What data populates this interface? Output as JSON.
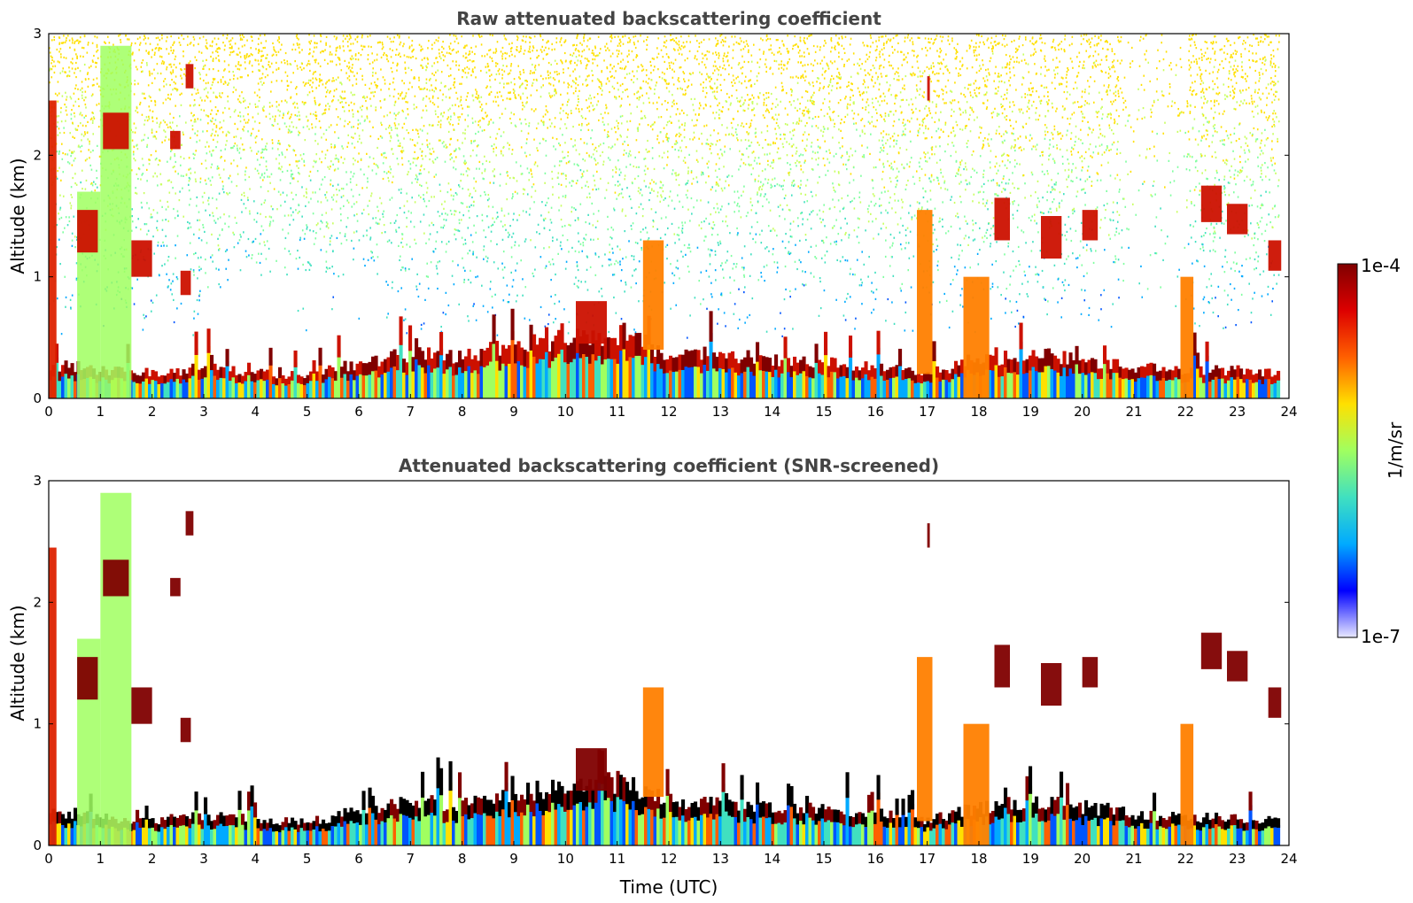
{
  "chart_data": [
    {
      "type": "heatmap",
      "title": "Raw attenuated backscattering coefficient",
      "xlabel": "",
      "ylabel": "Altitude (km)",
      "xlim": [
        0,
        24
      ],
      "ylim": [
        0,
        3
      ],
      "xticks": [
        "0",
        "1",
        "2",
        "3",
        "4",
        "5",
        "6",
        "7",
        "8",
        "9",
        "10",
        "11",
        "12",
        "13",
        "14",
        "15",
        "16",
        "17",
        "18",
        "19",
        "20",
        "21",
        "22",
        "23",
        "24"
      ],
      "yticks": [
        "0",
        "1",
        "2",
        "3"
      ],
      "screened": false,
      "noise_aloft": true
    },
    {
      "type": "heatmap",
      "title": "Attenuated backscattering coefficient (SNR-screened)",
      "xlabel": "Time (UTC)",
      "ylabel": "Altitude (km)",
      "xlim": [
        0,
        24
      ],
      "ylim": [
        0,
        3
      ],
      "xticks": [
        "0",
        "1",
        "2",
        "3",
        "4",
        "5",
        "6",
        "7",
        "8",
        "9",
        "10",
        "11",
        "12",
        "13",
        "14",
        "15",
        "16",
        "17",
        "18",
        "19",
        "20",
        "21",
        "22",
        "23",
        "24"
      ],
      "yticks": [
        "0",
        "1",
        "2",
        "3"
      ],
      "screened": true,
      "noise_aloft": false
    }
  ],
  "colorbar": {
    "label": "1/m/sr",
    "max_label": "1e-4",
    "min_label": "1e-7",
    "scale": "log",
    "colors": [
      "#e8e8ff",
      "#0000ff",
      "#00aaff",
      "#40e0c0",
      "#a0ff60",
      "#ffe000",
      "#ff6000",
      "#dd0000",
      "#800000"
    ]
  },
  "features": {
    "boundary_layer_km": [
      [
        0,
        0.25
      ],
      [
        0.5,
        0.25
      ],
      [
        1,
        0.22
      ],
      [
        2,
        0.2
      ],
      [
        2.5,
        0.22
      ],
      [
        3,
        0.24
      ],
      [
        4,
        0.2
      ],
      [
        5,
        0.18
      ],
      [
        6,
        0.28
      ],
      [
        7,
        0.35
      ],
      [
        8,
        0.32
      ],
      [
        9,
        0.42
      ],
      [
        10,
        0.45
      ],
      [
        11,
        0.5
      ],
      [
        12,
        0.35
      ],
      [
        13,
        0.35
      ],
      [
        14,
        0.3
      ],
      [
        15,
        0.28
      ],
      [
        16,
        0.25
      ],
      [
        17,
        0.2
      ],
      [
        18,
        0.3
      ],
      [
        19,
        0.35
      ],
      [
        20,
        0.3
      ],
      [
        21,
        0.25
      ],
      [
        22,
        0.22
      ],
      [
        23,
        0.22
      ],
      [
        23.8,
        0.2
      ]
    ],
    "layers": [
      {
        "t0": 0.0,
        "t1": 0.15,
        "z0": 0.0,
        "z1": 2.45,
        "kind": "dense"
      },
      {
        "t0": 0.55,
        "t1": 1.0,
        "z0": 0.0,
        "z1": 1.7,
        "kind": "fill"
      },
      {
        "t0": 1.0,
        "t1": 1.6,
        "z0": 0.0,
        "z1": 2.9,
        "kind": "fill"
      },
      {
        "t0": 1.05,
        "t1": 1.55,
        "z0": 2.05,
        "z1": 2.35,
        "kind": "cloud"
      },
      {
        "t0": 0.55,
        "t1": 0.95,
        "z0": 1.2,
        "z1": 1.55,
        "kind": "cloud"
      },
      {
        "t0": 1.6,
        "t1": 2.0,
        "z0": 1.0,
        "z1": 1.3,
        "kind": "cloud"
      },
      {
        "t0": 2.55,
        "t1": 2.75,
        "z0": 0.85,
        "z1": 1.05,
        "kind": "cloud"
      },
      {
        "t0": 2.65,
        "t1": 2.8,
        "z0": 2.55,
        "z1": 2.75,
        "kind": "cloud"
      },
      {
        "t0": 2.35,
        "t1": 2.55,
        "z0": 2.05,
        "z1": 2.2,
        "kind": "cloud"
      },
      {
        "t0": 10.2,
        "t1": 10.8,
        "z0": 0.45,
        "z1": 0.8,
        "kind": "cloud"
      },
      {
        "t0": 11.5,
        "t1": 11.9,
        "z0": 0.4,
        "z1": 1.3,
        "kind": "plume"
      },
      {
        "t0": 16.8,
        "t1": 17.1,
        "z0": 0.2,
        "z1": 1.55,
        "kind": "plume"
      },
      {
        "t0": 17.0,
        "t1": 17.05,
        "z0": 2.45,
        "z1": 2.65,
        "kind": "cloud"
      },
      {
        "t0": 17.7,
        "t1": 18.2,
        "z0": 0.0,
        "z1": 1.0,
        "kind": "plume"
      },
      {
        "t0": 18.3,
        "t1": 18.6,
        "z0": 1.3,
        "z1": 1.65,
        "kind": "cloud"
      },
      {
        "t0": 19.2,
        "t1": 19.6,
        "z0": 1.15,
        "z1": 1.5,
        "kind": "cloud"
      },
      {
        "t0": 20.0,
        "t1": 20.3,
        "z0": 1.3,
        "z1": 1.55,
        "kind": "cloud"
      },
      {
        "t0": 21.9,
        "t1": 22.15,
        "z0": 0.0,
        "z1": 1.0,
        "kind": "plume"
      },
      {
        "t0": 22.3,
        "t1": 22.7,
        "z0": 1.45,
        "z1": 1.75,
        "kind": "cloud"
      },
      {
        "t0": 22.8,
        "t1": 23.2,
        "z0": 1.35,
        "z1": 1.6,
        "kind": "cloud"
      },
      {
        "t0": 23.6,
        "t1": 23.85,
        "z0": 1.05,
        "z1": 1.3,
        "kind": "cloud"
      }
    ]
  }
}
